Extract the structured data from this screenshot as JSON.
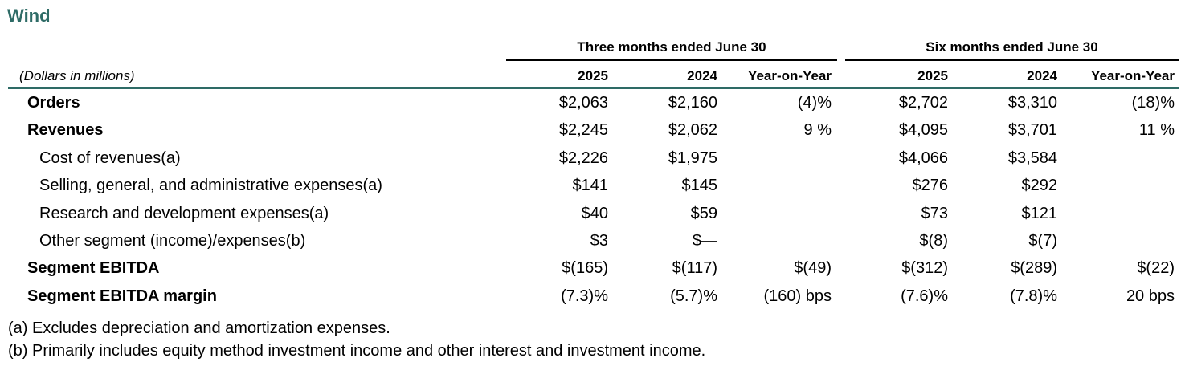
{
  "title": "Wind",
  "units_label": "(Dollars in millions)",
  "group_headers": {
    "three_months": "Three months ended June 30",
    "six_months": "Six months ended June 30"
  },
  "column_headers": {
    "q_2025": "2025",
    "q_2024": "2024",
    "q_yoy": "Year-on-Year",
    "s_2025": "2025",
    "s_2024": "2024",
    "s_yoy": "Year-on-Year"
  },
  "rows": [
    {
      "label": "Orders",
      "style": "bold",
      "q_2025": "$2,063",
      "q_2024": "$2,160",
      "q_yoy": "(4)%",
      "s_2025": "$2,702",
      "s_2024": "$3,310",
      "s_yoy": "(18)%"
    },
    {
      "label": "Revenues",
      "style": "bold",
      "q_2025": "$2,245",
      "q_2024": "$2,062",
      "q_yoy": "9 %",
      "s_2025": "$4,095",
      "s_2024": "$3,701",
      "s_yoy": "11 %"
    },
    {
      "label": "Cost of revenues(a)",
      "style": "indent",
      "q_2025": "$2,226",
      "q_2024": "$1,975",
      "q_yoy": "",
      "s_2025": "$4,066",
      "s_2024": "$3,584",
      "s_yoy": ""
    },
    {
      "label": "Selling, general, and administrative expenses(a)",
      "style": "indent",
      "q_2025": "$141",
      "q_2024": "$145",
      "q_yoy": "",
      "s_2025": "$276",
      "s_2024": "$292",
      "s_yoy": ""
    },
    {
      "label": "Research and development expenses(a)",
      "style": "indent",
      "q_2025": "$40",
      "q_2024": "$59",
      "q_yoy": "",
      "s_2025": "$73",
      "s_2024": "$121",
      "s_yoy": ""
    },
    {
      "label": "Other segment (income)/expenses(b)",
      "style": "indent",
      "q_2025": "$3",
      "q_2024": "$—",
      "q_yoy": "",
      "s_2025": "$(8)",
      "s_2024": "$(7)",
      "s_yoy": ""
    },
    {
      "label": "Segment EBITDA",
      "style": "bold",
      "q_2025": "$(165)",
      "q_2024": "$(117)",
      "q_yoy": "$(49)",
      "s_2025": "$(312)",
      "s_2024": "$(289)",
      "s_yoy": "$(22)"
    },
    {
      "label": "Segment EBITDA margin",
      "style": "bold",
      "q_2025": "(7.3)%",
      "q_2024": "(5.7)%",
      "q_yoy": "(160) bps",
      "s_2025": "(7.6)%",
      "s_2024": "(7.8)%",
      "s_yoy": "20 bps"
    }
  ],
  "footnotes": [
    "(a) Excludes depreciation and amortization expenses.",
    "(b) Primarily includes equity method investment income and other interest and investment income."
  ]
}
